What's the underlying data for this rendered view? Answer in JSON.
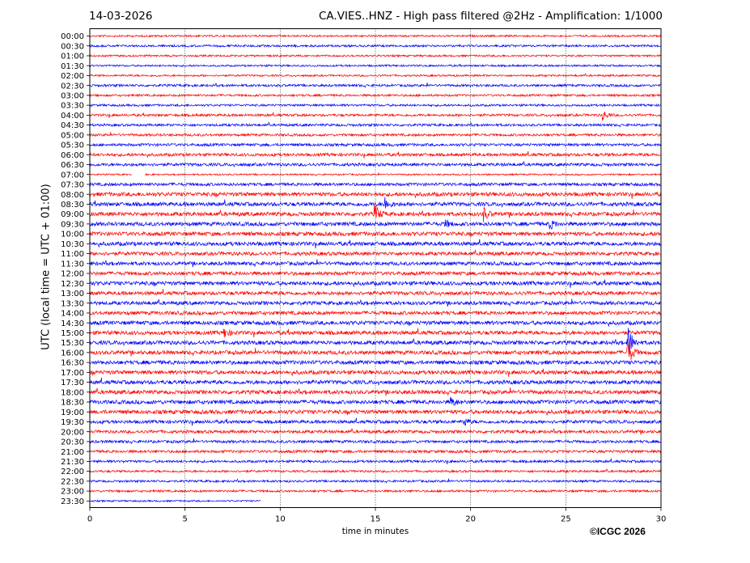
{
  "header": {
    "date": "14-03-2026",
    "title": "CA.VIES..HNZ - High pass filtered @2Hz - Amplification: 1/1000"
  },
  "footer": {
    "copyright": "©ICGC 2026"
  },
  "chart_data": {
    "type": "line",
    "subtype": "helicorder",
    "xlabel": "time in minutes",
    "ylabel": "UTC (local time = UTC + 01:00)",
    "xlim": [
      0,
      30
    ],
    "x_ticks": [
      0,
      5,
      10,
      15,
      20,
      25,
      30
    ],
    "vertical_gridlines_at": [
      5,
      10,
      15,
      20,
      25
    ],
    "row_labels": [
      "00:00",
      "00:30",
      "01:00",
      "01:30",
      "02:00",
      "02:30",
      "03:00",
      "03:30",
      "04:00",
      "04:30",
      "05:00",
      "05:30",
      "06:00",
      "06:30",
      "07:00",
      "07:30",
      "08:00",
      "08:30",
      "09:00",
      "09:30",
      "10:00",
      "10:30",
      "11:00",
      "11:30",
      "12:00",
      "12:30",
      "13:00",
      "13:30",
      "14:00",
      "14:30",
      "15:00",
      "15:30",
      "16:00",
      "16:30",
      "17:00",
      "17:30",
      "18:00",
      "18:30",
      "19:00",
      "19:30",
      "20:00",
      "20:30",
      "21:00",
      "21:30",
      "22:00",
      "22:30",
      "23:00",
      "23:30"
    ],
    "series_colors": [
      "#ff0000",
      "#0000ff"
    ],
    "row_activity": [
      0.3,
      0.4,
      0.3,
      0.3,
      0.3,
      0.5,
      0.4,
      0.4,
      0.5,
      0.5,
      0.5,
      0.6,
      0.7,
      0.7,
      0.2,
      0.7,
      1.0,
      1.0,
      1.0,
      1.0,
      1.0,
      1.0,
      0.9,
      0.9,
      0.9,
      1.0,
      0.9,
      0.9,
      0.9,
      1.0,
      1.0,
      1.0,
      1.0,
      1.0,
      1.0,
      1.0,
      1.0,
      1.0,
      1.0,
      0.8,
      0.7,
      0.6,
      0.6,
      0.5,
      0.4,
      0.4,
      0.4,
      0.2
    ],
    "row_extent_minutes": [
      30,
      30,
      30,
      30,
      30,
      30,
      30,
      30,
      30,
      30,
      30,
      30,
      30,
      30,
      30,
      30,
      30,
      30,
      30,
      30,
      30,
      30,
      30,
      30,
      30,
      30,
      30,
      30,
      30,
      30,
      30,
      30,
      30,
      30,
      30,
      30,
      30,
      30,
      30,
      30,
      30,
      30,
      30,
      30,
      30,
      30,
      30,
      9
    ],
    "gap": {
      "row": "07:00",
      "from_minute": 2.2,
      "to_minute": 2.9
    },
    "notable_events": [
      {
        "row": "04:00",
        "minute": 27.0,
        "amplitude": 0.8
      },
      {
        "row": "08:30",
        "minute": 15.5,
        "amplitude": 1.2
      },
      {
        "row": "09:00",
        "minute": 15.0,
        "amplitude": 1.6
      },
      {
        "row": "09:00",
        "minute": 20.7,
        "amplitude": 1.2
      },
      {
        "row": "09:30",
        "minute": 18.7,
        "amplitude": 0.6
      },
      {
        "row": "09:30",
        "minute": 24.2,
        "amplitude": 0.8
      },
      {
        "row": "15:00",
        "minute": 7.1,
        "amplitude": 0.7
      },
      {
        "row": "15:30",
        "minute": 28.3,
        "amplitude": 2.8
      },
      {
        "row": "16:00",
        "minute": 28.3,
        "amplitude": 2.2
      },
      {
        "row": "18:30",
        "minute": 19.0,
        "amplitude": 0.8
      },
      {
        "row": "19:30",
        "minute": 19.7,
        "amplitude": 0.6
      }
    ]
  }
}
